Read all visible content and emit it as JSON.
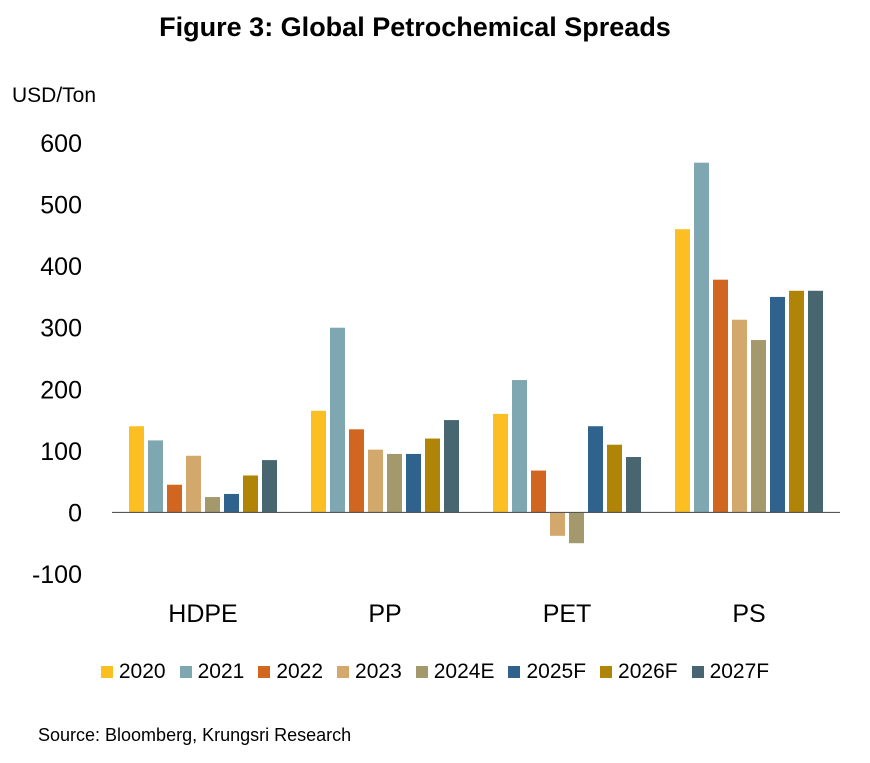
{
  "chart_data": {
    "type": "bar",
    "title": "Figure 3: Global Petrochemical Spreads",
    "ylabel": "USD/Ton",
    "xlabel": "",
    "categories": [
      "HDPE",
      "PP",
      "PET",
      "PS"
    ],
    "ylim": [
      -100,
      600
    ],
    "yticks": [
      -100,
      0,
      100,
      200,
      300,
      400,
      500,
      600
    ],
    "grid": false,
    "legend_position": "bottom",
    "series": [
      {
        "name": "2020",
        "color": "#FBBF24",
        "values": [
          140,
          165,
          160,
          460
        ]
      },
      {
        "name": "2021",
        "color": "#7FA7B2",
        "values": [
          117,
          300,
          215,
          568
        ]
      },
      {
        "name": "2022",
        "color": "#D0661F",
        "values": [
          45,
          135,
          68,
          378
        ]
      },
      {
        "name": "2023",
        "color": "#D2A86C",
        "values": [
          92,
          102,
          -38,
          313
        ]
      },
      {
        "name": "2024E",
        "color": "#A3996C",
        "values": [
          25,
          95,
          -50,
          280
        ]
      },
      {
        "name": "2025F",
        "color": "#2F628C",
        "values": [
          30,
          95,
          140,
          350
        ]
      },
      {
        "name": "2026F",
        "color": "#B08407",
        "values": [
          60,
          120,
          110,
          360
        ]
      },
      {
        "name": "2027F",
        "color": "#47666F",
        "values": [
          85,
          150,
          90,
          360
        ]
      }
    ],
    "source": "Source: Bloomberg, Krungsri Research"
  }
}
